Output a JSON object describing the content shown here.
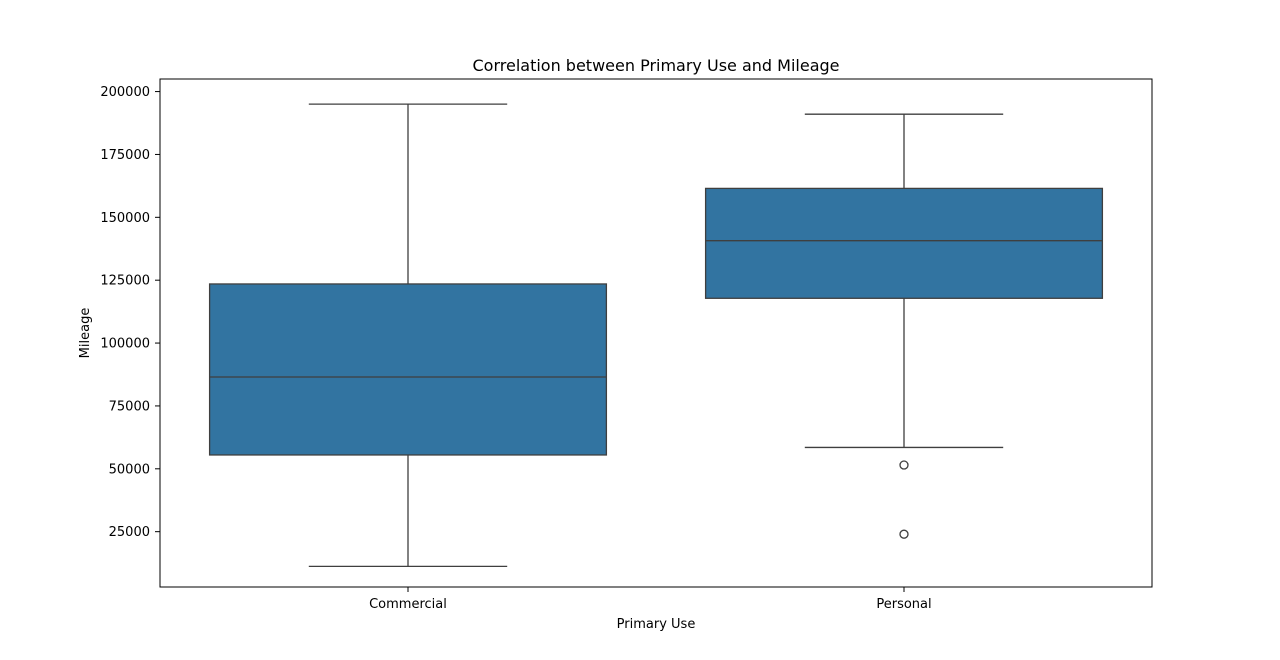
{
  "chart_data": {
    "type": "box",
    "title": "Correlation between Primary Use and Mileage",
    "xlabel": "Primary Use",
    "ylabel": "Mileage",
    "categories": [
      "Commercial",
      "Personal"
    ],
    "ylim": [
      3000,
      205000
    ],
    "yticks": [
      25000,
      50000,
      75000,
      100000,
      125000,
      150000,
      175000,
      200000
    ],
    "ytick_labels": [
      "25000",
      "50000",
      "75000",
      "100000",
      "125000",
      "150000",
      "175000",
      "200000"
    ],
    "box_color": "#3274a1",
    "line_color": "#3f3f3f",
    "boxes": [
      {
        "category": "Commercial",
        "whisker_low": 11200,
        "q1": 55500,
        "median": 86500,
        "q3": 123500,
        "whisker_high": 195000,
        "outliers": []
      },
      {
        "category": "Personal",
        "whisker_low": 58500,
        "q1": 117800,
        "median": 140700,
        "q3": 161500,
        "whisker_high": 191000,
        "outliers": [
          51500,
          24000
        ]
      }
    ],
    "grid": false,
    "legend": "none"
  }
}
